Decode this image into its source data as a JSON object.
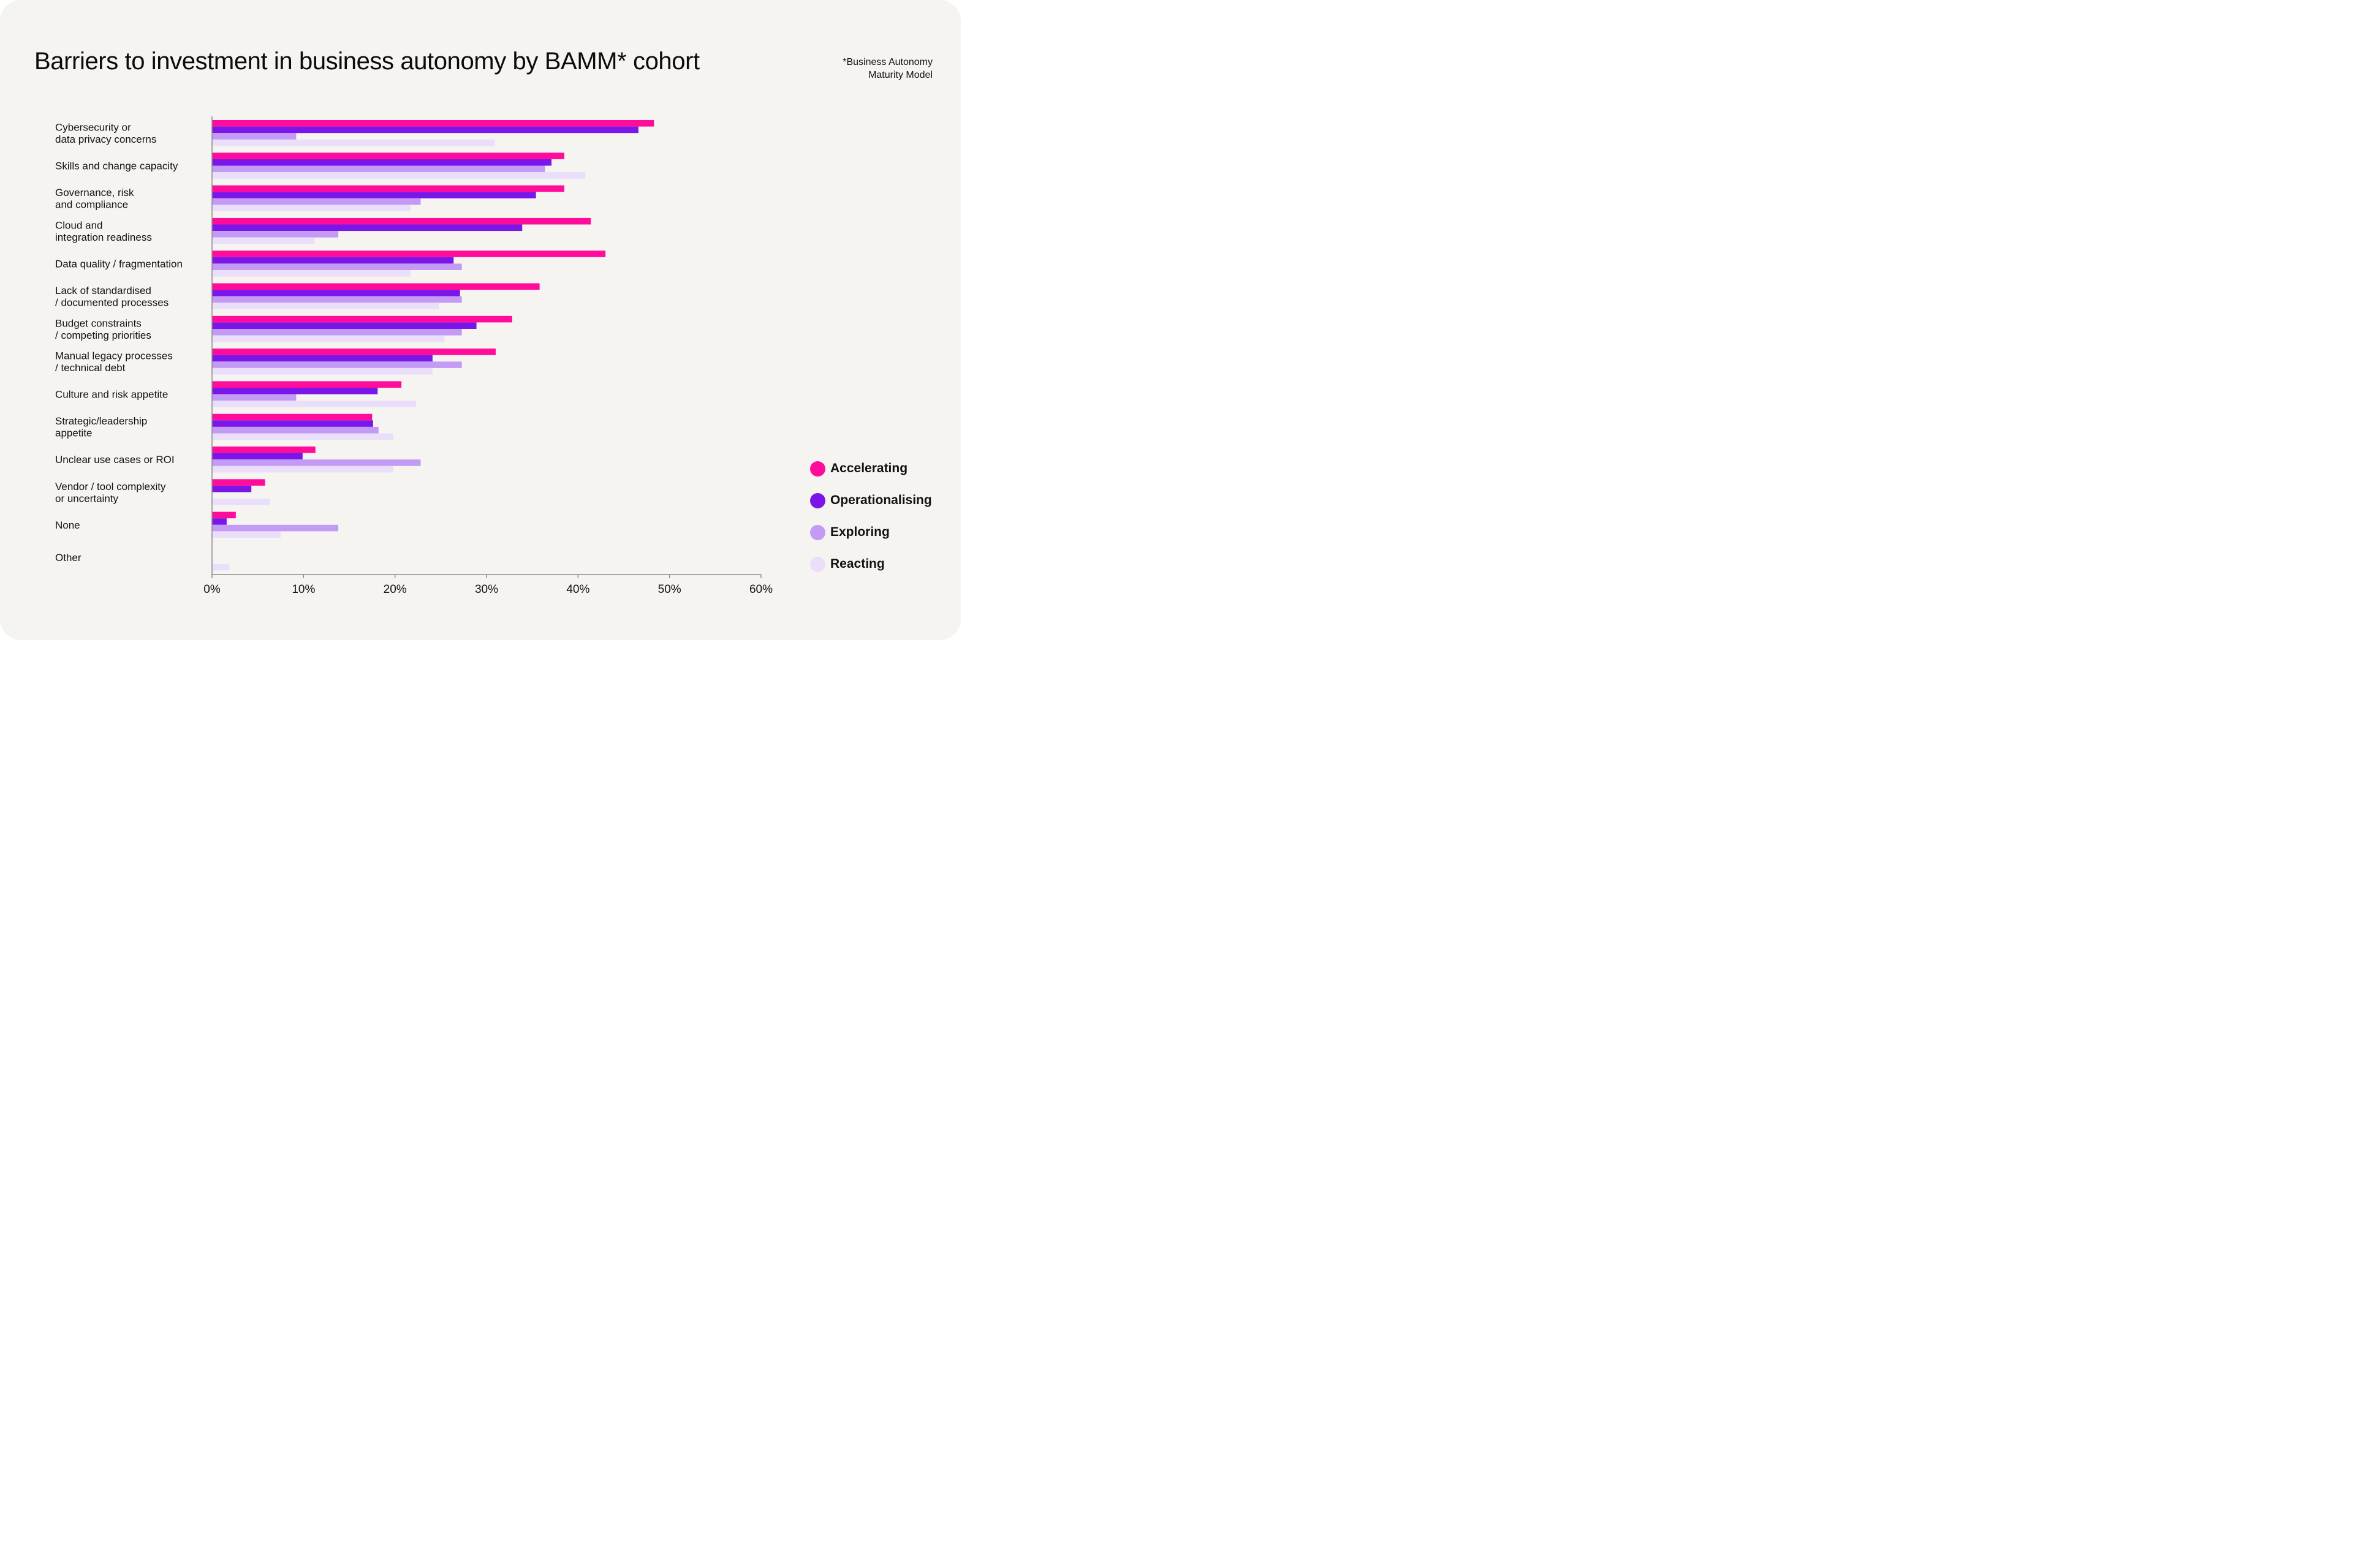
{
  "title": "Barriers to investment in business autonomy by BAMM* cohort",
  "footnote": [
    "*Business Autonomy",
    "Maturity Model"
  ],
  "colors": {
    "accelerating": "#ff0d9a",
    "operationalising": "#7b16e8",
    "exploring": "#c39bf5",
    "reacting": "#ebdefa",
    "axis": "#8c8c8c"
  },
  "chart_data": {
    "type": "bar",
    "orientation": "horizontal",
    "title": "Barriers to investment in business autonomy by BAMM* cohort",
    "xlim": [
      0,
      60
    ],
    "xticks": [
      "0%",
      "10%",
      "20%",
      "30%",
      "40%",
      "50%",
      "60%"
    ],
    "grid": false,
    "legend_position": "bottom-right",
    "categories": [
      [
        "Cybersecurity or",
        "data privacy concerns"
      ],
      [
        "Skills and change capacity"
      ],
      [
        "Governance, risk",
        "and compliance"
      ],
      [
        "Cloud and",
        "integration readiness"
      ],
      [
        "Data quality / fragmentation"
      ],
      [
        "Lack of standardised",
        "/ documented processes"
      ],
      [
        "Budget constraints",
        "/ competing priorities"
      ],
      [
        "Manual legacy processes",
        "/ technical debt"
      ],
      [
        "Culture and risk appetite"
      ],
      [
        "Strategic/leadership",
        "appetite"
      ],
      [
        "Unclear use cases or ROI"
      ],
      [
        "Vendor / tool complexity",
        "or uncertainty"
      ],
      [
        "None"
      ],
      [
        "Other"
      ]
    ],
    "series": [
      {
        "name": "Accelerating",
        "color": "#ff0d9a",
        "values": [
          48.3,
          38.5,
          38.5,
          41.4,
          43.0,
          35.8,
          32.8,
          31.0,
          20.7,
          17.5,
          11.3,
          5.8,
          2.6,
          0
        ]
      },
      {
        "name": "Operationalising",
        "color": "#7b16e8",
        "values": [
          46.6,
          37.1,
          35.4,
          33.9,
          26.4,
          27.1,
          28.9,
          24.1,
          18.1,
          17.6,
          9.9,
          4.3,
          1.6,
          0
        ]
      },
      {
        "name": "Exploring",
        "color": "#c39bf5",
        "values": [
          9.2,
          36.4,
          22.8,
          13.8,
          27.3,
          27.3,
          27.3,
          27.3,
          9.2,
          18.2,
          22.8,
          0,
          13.8,
          0
        ]
      },
      {
        "name": "Reacting",
        "color": "#ebdefa",
        "values": [
          30.9,
          40.8,
          21.7,
          11.2,
          21.7,
          24.8,
          25.4,
          24.1,
          22.3,
          19.8,
          19.8,
          6.3,
          7.5,
          1.9
        ]
      }
    ]
  }
}
